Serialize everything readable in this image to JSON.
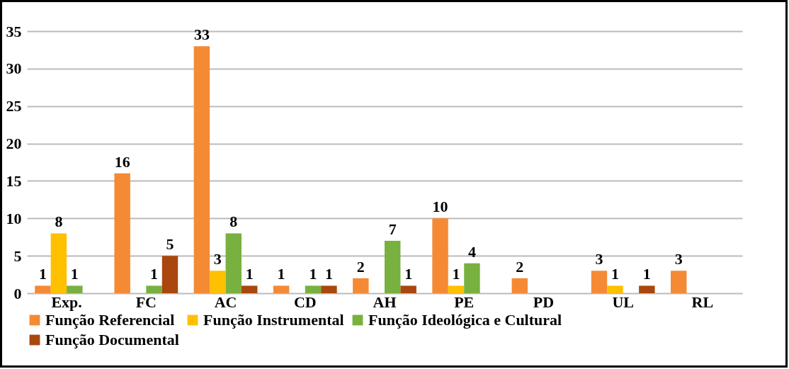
{
  "chart_data": {
    "type": "bar",
    "categories": [
      "Exp.",
      "FC",
      "AC",
      "CD",
      "AH",
      "PE",
      "PD",
      "UL",
      "RL"
    ],
    "series": [
      {
        "name": "Função Referencial",
        "color": "#f58a35",
        "values": [
          1,
          16,
          33,
          1,
          2,
          10,
          2,
          3,
          3
        ]
      },
      {
        "name": "Função Instrumental",
        "color": "#ffc000",
        "values": [
          8,
          null,
          3,
          null,
          null,
          1,
          null,
          1,
          null
        ]
      },
      {
        "name": "Função Ideológica e Cultural",
        "color": "#78b13f",
        "values": [
          1,
          1,
          8,
          1,
          7,
          4,
          null,
          null,
          null
        ]
      },
      {
        "name": "Função Documental",
        "color": "#a9470f",
        "values": [
          null,
          5,
          1,
          1,
          1,
          null,
          null,
          1,
          null
        ]
      }
    ],
    "ylim": [
      0,
      35
    ],
    "yticks": [
      0,
      5,
      10,
      15,
      20,
      25,
      30,
      35
    ],
    "grid": "y",
    "legend": "bottom",
    "data_labels": true
  }
}
